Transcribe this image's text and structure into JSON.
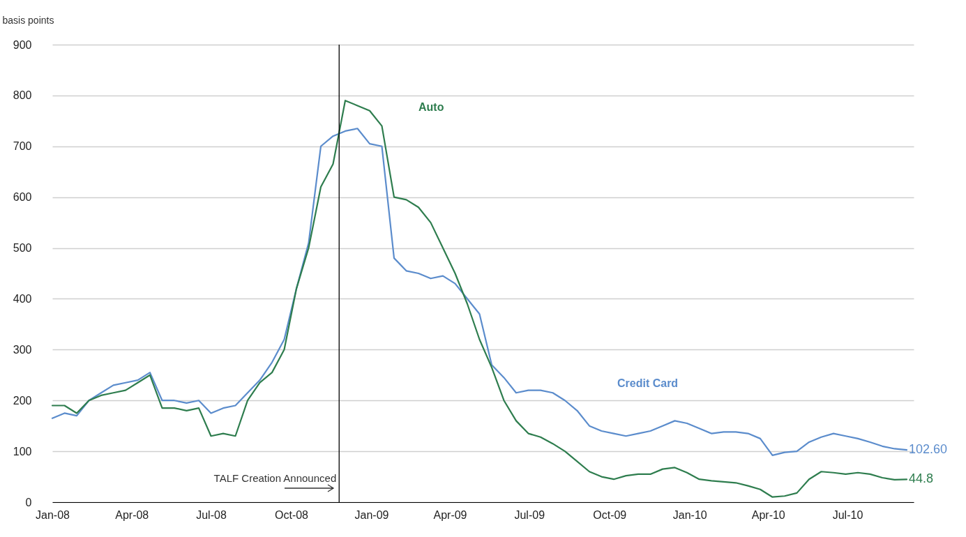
{
  "chart_data": {
    "type": "line",
    "ylabel": "basis points",
    "x": [
      "2008-01-01",
      "2008-01-15",
      "2008-01-29",
      "2008-02-12",
      "2008-02-26",
      "2008-03-11",
      "2008-03-25",
      "2008-04-08",
      "2008-04-22",
      "2008-05-06",
      "2008-05-20",
      "2008-06-03",
      "2008-06-17",
      "2008-07-01",
      "2008-07-15",
      "2008-07-29",
      "2008-08-12",
      "2008-08-26",
      "2008-09-09",
      "2008-09-23",
      "2008-10-07",
      "2008-10-21",
      "2008-11-04",
      "2008-11-18",
      "2008-12-02",
      "2008-12-16",
      "2008-12-30",
      "2009-01-13",
      "2009-01-27",
      "2009-02-10",
      "2009-02-24",
      "2009-03-10",
      "2009-03-24",
      "2009-04-07",
      "2009-04-21",
      "2009-05-05",
      "2009-05-19",
      "2009-06-02",
      "2009-06-16",
      "2009-06-30",
      "2009-07-14",
      "2009-07-28",
      "2009-08-11",
      "2009-08-25",
      "2009-09-08",
      "2009-09-22",
      "2009-10-06",
      "2009-10-20",
      "2009-11-03",
      "2009-11-17",
      "2009-12-01",
      "2009-12-15",
      "2009-12-29",
      "2010-01-12",
      "2010-01-26",
      "2010-02-09",
      "2010-02-23",
      "2010-03-09",
      "2010-03-23",
      "2010-04-06",
      "2010-04-20",
      "2010-05-04",
      "2010-05-18",
      "2010-06-01",
      "2010-06-15",
      "2010-06-29",
      "2010-07-13",
      "2010-07-27",
      "2010-08-10",
      "2010-08-24",
      "2010-09-07"
    ],
    "series": [
      {
        "name": "Credit Card",
        "color": "#5b8ccc",
        "values": [
          165,
          175,
          170,
          200,
          215,
          230,
          235,
          240,
          255,
          200,
          200,
          195,
          200,
          175,
          185,
          190,
          215,
          240,
          275,
          320,
          420,
          510,
          700,
          720,
          730,
          735,
          705,
          700,
          480,
          455,
          450,
          440,
          445,
          430,
          400,
          370,
          270,
          245,
          215,
          220,
          220,
          215,
          200,
          180,
          150,
          140,
          135,
          130,
          135,
          140,
          150,
          160,
          155,
          145,
          135,
          138,
          138,
          135,
          125,
          92,
          98,
          100,
          118,
          128,
          135,
          130,
          125,
          118,
          110,
          105,
          102.6
        ],
        "value_labels": [
          null,
          null,
          null,
          null,
          null,
          null,
          null,
          null,
          null,
          null,
          null,
          null,
          null,
          null,
          null,
          null,
          null,
          null,
          null,
          null,
          null,
          null,
          null,
          null,
          null,
          null,
          null,
          null,
          null,
          null,
          null,
          null,
          null,
          null,
          null,
          null,
          null,
          null,
          null,
          null,
          null,
          null,
          null,
          null,
          null,
          null,
          null,
          null,
          null,
          null,
          null,
          null,
          null,
          null,
          null,
          null,
          null,
          null,
          null,
          null,
          null,
          null,
          null,
          null,
          null,
          null,
          null,
          null,
          null,
          null,
          "102.60"
        ]
      },
      {
        "name": "Auto",
        "color": "#2e7d4e",
        "values": [
          190,
          190,
          175,
          200,
          210,
          215,
          220,
          235,
          250,
          185,
          185,
          180,
          185,
          130,
          135,
          130,
          200,
          235,
          255,
          300,
          420,
          500,
          620,
          665,
          790,
          780,
          770,
          740,
          600,
          595,
          580,
          550,
          500,
          450,
          390,
          320,
          265,
          200,
          160,
          135,
          128,
          115,
          100,
          80,
          60,
          50,
          45,
          52,
          55,
          55,
          65,
          68,
          58,
          45,
          42,
          40,
          38,
          32,
          25,
          10,
          12,
          18,
          45,
          60,
          58,
          55,
          58,
          55,
          48,
          44,
          44.8
        ],
        "value_labels": [
          null,
          null,
          null,
          null,
          null,
          null,
          null,
          null,
          null,
          null,
          null,
          null,
          null,
          null,
          null,
          null,
          null,
          null,
          null,
          null,
          null,
          null,
          null,
          null,
          null,
          null,
          null,
          null,
          null,
          null,
          null,
          null,
          null,
          null,
          null,
          null,
          null,
          null,
          null,
          null,
          null,
          null,
          null,
          null,
          null,
          null,
          null,
          null,
          null,
          null,
          null,
          null,
          null,
          null,
          null,
          null,
          null,
          null,
          null,
          null,
          null,
          null,
          null,
          null,
          null,
          null,
          null,
          null,
          null,
          null,
          "44.8"
        ]
      }
    ],
    "xlim": [
      "2008-01-01",
      "2010-09-15"
    ],
    "xticks": [
      {
        "value": "2008-01-01",
        "label": "Jan-08"
      },
      {
        "value": "2008-04-01",
        "label": "Apr-08"
      },
      {
        "value": "2008-07-01",
        "label": "Jul-08"
      },
      {
        "value": "2008-10-01",
        "label": "Oct-08"
      },
      {
        "value": "2009-01-01",
        "label": "Jan-09"
      },
      {
        "value": "2009-04-01",
        "label": "Apr-09"
      },
      {
        "value": "2009-07-01",
        "label": "Jul-09"
      },
      {
        "value": "2009-10-01",
        "label": "Oct-09"
      },
      {
        "value": "2010-01-01",
        "label": "Jan-10"
      },
      {
        "value": "2010-04-01",
        "label": "Apr-10"
      },
      {
        "value": "2010-07-01",
        "label": "Jul-10"
      }
    ],
    "ylim": [
      0,
      900
    ],
    "yticks": [
      0,
      100,
      200,
      300,
      400,
      500,
      600,
      700,
      800,
      900
    ],
    "grid": "y",
    "ref_lines": [
      {
        "axis": "x",
        "value": "2008-11-25",
        "label": "TALF Creation Announced",
        "color": "#000000"
      }
    ]
  }
}
